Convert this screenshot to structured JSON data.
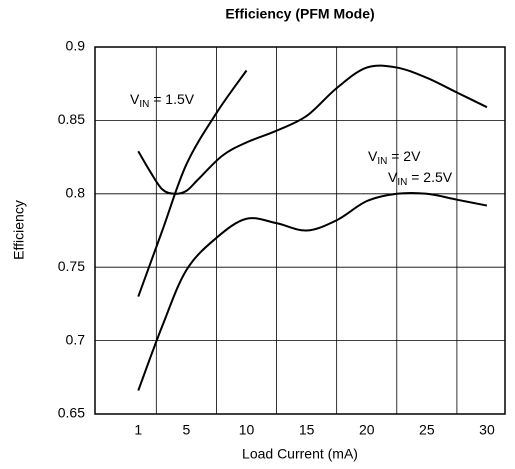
{
  "chart_data": {
    "type": "line",
    "title": "Efficiency (PFM Mode)",
    "x_label": "Load Current (mA)",
    "y_label": "Efficiency",
    "xlim": [
      -2.6,
      31.5
    ],
    "xticks": [
      1,
      5,
      10,
      15,
      20,
      25,
      30
    ],
    "xgrid": [
      2.5,
      7.5,
      12.5,
      17.5,
      22.5,
      27.5
    ],
    "ylim": [
      0.65,
      0.9
    ],
    "yticks": [
      0.9,
      0.85,
      0.8,
      0.75,
      0.7,
      0.65
    ],
    "grid": true,
    "color": "#000000",
    "series": [
      {
        "label_parts": [
          "V",
          "IN",
          " = 1.5V"
        ],
        "x": [
          1,
          3,
          5,
          7.5,
          10
        ],
        "values": [
          0.73,
          0.775,
          0.82,
          0.855,
          0.884
        ]
      },
      {
        "label_parts": [
          "V",
          "IN",
          " = 2V"
        ],
        "x": [
          1,
          2,
          3,
          4,
          5,
          6,
          8,
          10,
          12.5,
          15,
          17.5,
          20,
          22.5,
          25,
          27.5,
          30
        ],
        "values": [
          0.829,
          0.815,
          0.803,
          0.8,
          0.802,
          0.81,
          0.826,
          0.835,
          0.843,
          0.853,
          0.872,
          0.886,
          0.886,
          0.879,
          0.869,
          0.859
        ]
      },
      {
        "label_parts": [
          "V",
          "IN",
          " = 2.5V"
        ],
        "x": [
          1,
          3,
          5,
          7.5,
          10,
          12.5,
          15,
          17.5,
          20,
          22.5,
          25,
          27.5,
          30
        ],
        "values": [
          0.666,
          0.71,
          0.748,
          0.77,
          0.783,
          0.78,
          0.775,
          0.782,
          0.795,
          0.8,
          0.8,
          0.796,
          0.792
        ]
      }
    ]
  }
}
